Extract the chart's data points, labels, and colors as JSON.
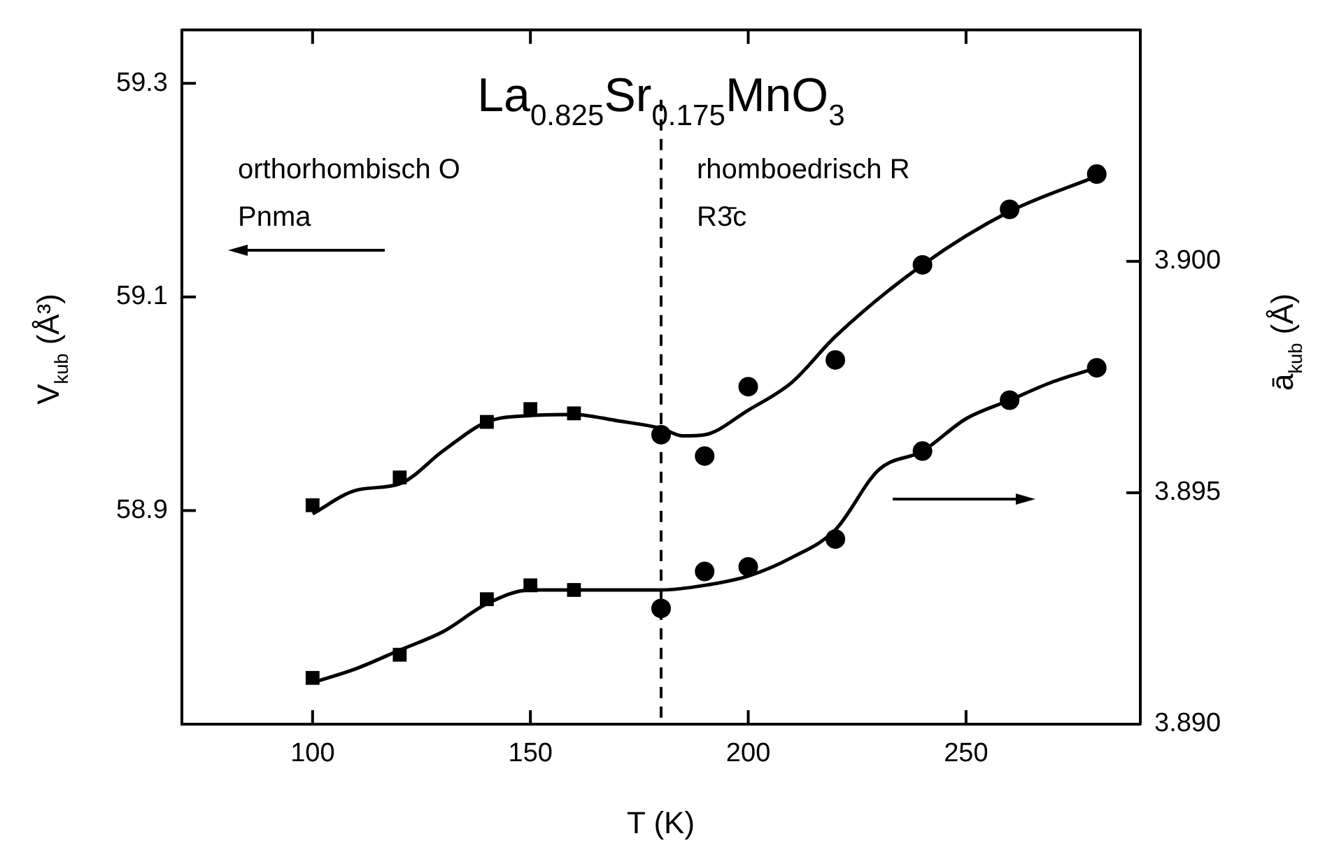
{
  "chart_data": {
    "type": "scatter",
    "title": "La$_{0.825}$Sr$_{0.175}$MnO$_{3}$",
    "xlabel": "T (K)",
    "ylabel": "V$_{kub}$ (Å³)",
    "y2label": "ā$_{kub}$ (Å)",
    "annotations": [
      "orthorhombisch O",
      "Pnma",
      "rhomboedrisch R",
      "R3̄c"
    ],
    "xlim": [
      70,
      290
    ],
    "xticks": [
      100,
      150,
      200,
      250
    ],
    "ylim": [
      58.7,
      59.35
    ],
    "yticks": [
      58.9,
      59.1,
      59.3
    ],
    "y2lim": [
      3.89,
      3.905
    ],
    "y2ticks": [
      {
        "value": 3.89,
        "label": "3.890"
      },
      {
        "value": 3.895,
        "label": "3.895"
      },
      {
        "value": 3.9,
        "label": "3.900"
      }
    ],
    "grid": false,
    "legend": false,
    "ref_lines": [
      {
        "axis": "x",
        "value": 180,
        "line_style": "dashed",
        "color": "#000000"
      }
    ],
    "series": [
      {
        "axis": "y",
        "marker": "square",
        "color": "#000000",
        "x": [
          100,
          120,
          140,
          150,
          160
        ],
        "values": [
          58.905,
          58.931,
          58.983,
          58.995,
          58.991
        ]
      },
      {
        "axis": "y",
        "marker": "circle",
        "color": "#000000",
        "x": [
          180,
          190,
          200,
          220,
          240,
          260,
          280
        ],
        "values": [
          58.971,
          58.951,
          59.016,
          59.041,
          59.13,
          59.182,
          59.215
        ]
      },
      {
        "type": "line",
        "axis": "y",
        "marker": "none",
        "line_style": "solid",
        "color": "#000000",
        "x": [
          100,
          110,
          120,
          130,
          140,
          150,
          160,
          170,
          180,
          185,
          190,
          200,
          210,
          220,
          240,
          260,
          280
        ],
        "values": [
          58.897,
          58.919,
          58.925,
          58.956,
          58.983,
          58.989,
          58.99,
          58.984,
          58.977,
          58.97,
          58.971,
          58.994,
          59.02,
          59.063,
          59.13,
          59.18,
          59.213
        ]
      },
      {
        "axis": "y2",
        "marker": "square",
        "color": "#000000",
        "x": [
          100,
          120,
          140,
          150,
          160
        ],
        "values": [
          3.891,
          3.8915,
          3.8927,
          3.893,
          3.8929
        ]
      },
      {
        "axis": "y2",
        "marker": "circle",
        "color": "#000000",
        "x": [
          180,
          190,
          200,
          220,
          240,
          260,
          280
        ],
        "values": [
          3.8925,
          3.8933,
          3.8934,
          3.894,
          3.8959,
          3.897,
          3.8977
        ]
      },
      {
        "type": "line",
        "axis": "y2",
        "marker": "none",
        "line_style": "solid",
        "color": "#000000",
        "x": [
          100,
          110,
          120,
          130,
          140,
          150,
          160,
          180,
          190,
          200,
          210,
          220,
          230,
          240,
          250,
          260,
          270,
          280
        ],
        "values": [
          3.8909,
          3.8912,
          3.8916,
          3.892,
          3.8926,
          3.8929,
          3.8929,
          3.8929,
          3.893,
          3.8932,
          3.8936,
          3.8942,
          3.8955,
          3.8959,
          3.8966,
          3.897,
          3.8974,
          3.8977
        ]
      }
    ]
  }
}
